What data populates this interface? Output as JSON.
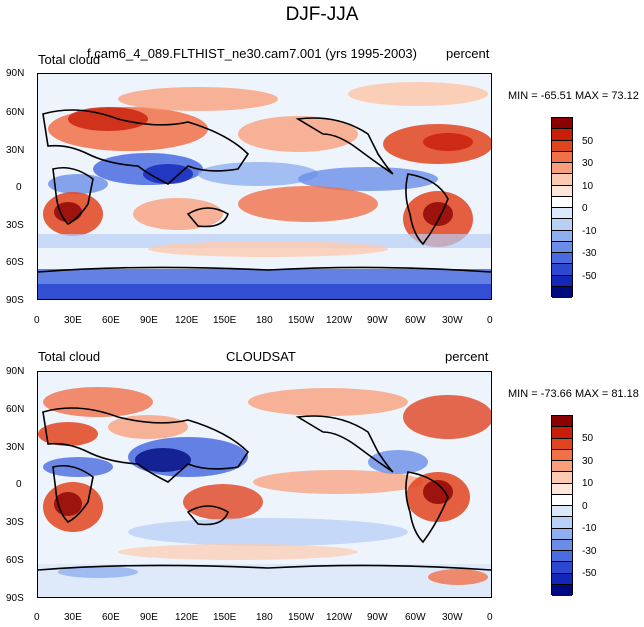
{
  "figure_title": "DJF-JJA",
  "panels": [
    {
      "left_label": "Total cloud",
      "center_label": "f.cam6_4_089.FLTHIST_ne30.cam7.001 (yrs 1995-2003)",
      "right_label": "percent",
      "minmax": "MIN = -65.51 MAX =  73.12"
    },
    {
      "left_label": "Total cloud",
      "center_label": "CLOUDSAT",
      "right_label": "percent",
      "minmax": "MIN = -73.66 MAX =  81.18"
    }
  ],
  "lat_ticks": [
    "90N",
    "60N",
    "30N",
    "0",
    "30S",
    "60S",
    "90S"
  ],
  "lon_ticks": [
    "0",
    "30E",
    "60E",
    "90E",
    "120E",
    "150E",
    "180",
    "150W",
    "120W",
    "90W",
    "60W",
    "30W",
    "0"
  ],
  "colorbar": {
    "labels": [
      "50",
      "30",
      "10",
      "0",
      "-10",
      "-30",
      "-50"
    ],
    "colors": [
      "#8b0000",
      "#c81e0a",
      "#e0441f",
      "#f07048",
      "#f8a07c",
      "#fccab0",
      "#fde6d8",
      "#ffffff",
      "#dbe8fa",
      "#b8cff6",
      "#8fb0f0",
      "#6a8ee8",
      "#4a6be0",
      "#2c48d0",
      "#1226b8",
      "#000a80"
    ]
  }
}
